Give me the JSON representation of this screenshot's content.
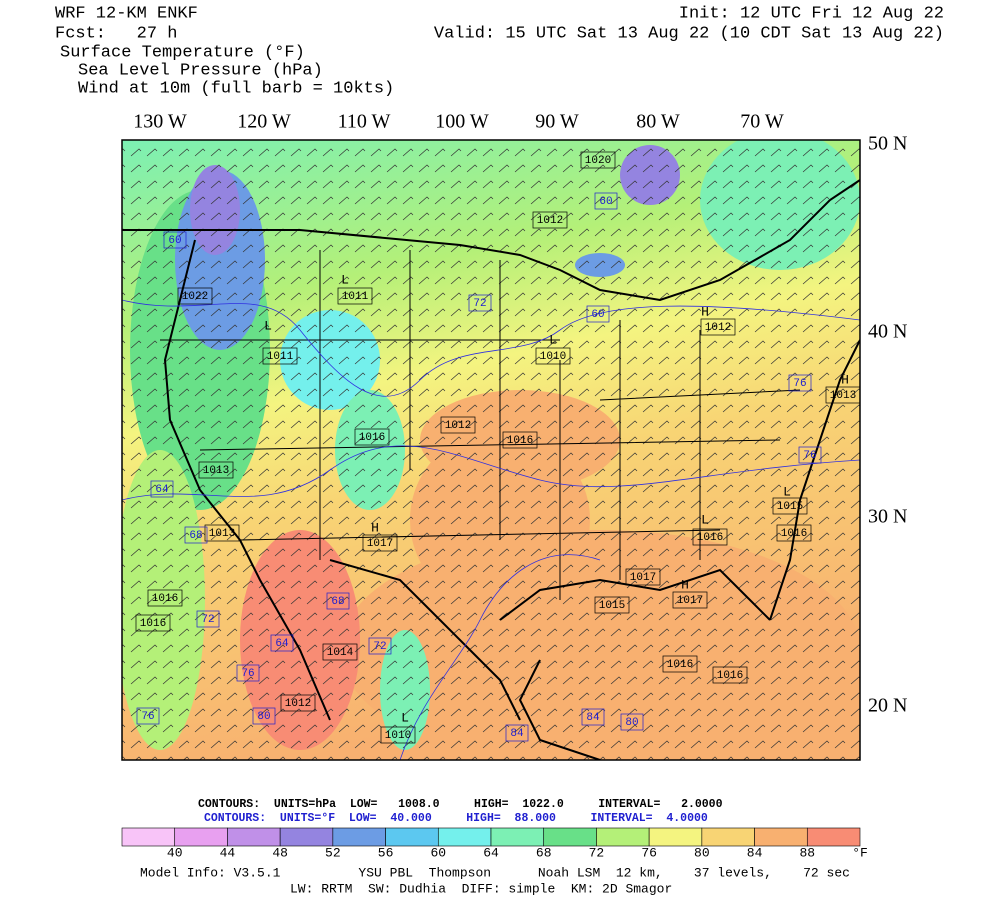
{
  "header": {
    "model": "WRF 12-KM ENKF",
    "init": "Init: 12 UTC Fri 12 Aug 22",
    "forecast": "Fcst:   27 h",
    "valid": "Valid: 15 UTC Sat 13 Aug 22 (10 CDT Sat 13 Aug 22)",
    "fields": [
      "Surface Temperature (°F)",
      "Sea Level Pressure (hPa)",
      "Wind at 10m (full barb = 10kts)"
    ]
  },
  "map": {
    "longitude_labels": [
      "130 W",
      "120 W",
      "110 W",
      "100 W",
      "90 W",
      "80 W",
      "70 W"
    ],
    "latitude_labels": [
      "50 N",
      "40 N",
      "30 N",
      "20 N"
    ],
    "pressure_labels": [
      "1020",
      "1012",
      "1011",
      "1022",
      "1011",
      "1010",
      "1012",
      "1016",
      "1012",
      "1016",
      "1013",
      "1015",
      "1013",
      "1017",
      "1016",
      "1016",
      "1017",
      "1015",
      "1017",
      "1016",
      "1016",
      "1016",
      "1016",
      "1012",
      "1010",
      "1014",
      "1013"
    ],
    "temperature_labels": [
      "60",
      "60",
      "72",
      "60",
      "64",
      "68",
      "76",
      "76",
      "72",
      "76",
      "64",
      "68",
      "72",
      "80",
      "76",
      "84",
      "84",
      "80"
    ],
    "pressure_centers": [
      "H",
      "L",
      "L",
      "L",
      "H",
      "L",
      "H",
      "L",
      "L",
      "H"
    ]
  },
  "contour_info": {
    "pressure": "CONTOURS:  UNITS=hPa  LOW=   1008.0     HIGH=  1022.0     INTERVAL=   2.0000",
    "temperature": "CONTOURS:  UNITS=°F  LOW=  40.000     HIGH=  88.000     INTERVAL=  4.0000"
  },
  "colorbar": {
    "ticks": [
      40,
      44,
      48,
      52,
      56,
      60,
      64,
      68,
      72,
      76,
      80,
      84,
      88
    ],
    "unit": "°F",
    "colors": [
      "#f8c4f8",
      "#e8a0f0",
      "#c090e8",
      "#9484e0",
      "#6c9ce4",
      "#5cc8f0",
      "#74f0ec",
      "#7cf0b4",
      "#68e088",
      "#b4f078",
      "#f4f480",
      "#f8d474",
      "#f8b070",
      "#f88c74"
    ]
  },
  "footer": {
    "line1": "Model Info: V3.5.1          YSU PBL  Thompson      Noah LSM  12 km,    37 levels,    72 sec",
    "line2": "LW: RRTM  SW: Dudhia  DIFF: simple  KM: 2D Smagor"
  }
}
